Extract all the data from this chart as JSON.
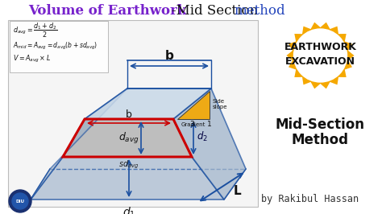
{
  "title_part1": "Volume of Earthwork",
  "title_part2": "-Mid Section ",
  "title_part3": "method",
  "title_color1": "#7722cc",
  "title_color2": "#111111",
  "title_color3": "#2244bb",
  "bg_color": "#ffffff",
  "badge_color": "#f5a800",
  "badge_text1": "EARTHWORK",
  "badge_text2": "EXCAVATION",
  "right_text1": "Mid-Section",
  "right_text2": "Method",
  "author_text": "by Rakibul Hassan",
  "trapezoid_fill": "#aabbd0",
  "top_face_fill": "#c8d8e8",
  "mid_section_fill": "#b8b8b8",
  "red_box_color": "#cc0000",
  "arrow_color": "#1a4fa0",
  "diagram_bg": "#f5f5f5",
  "gradient_tri_color": "#f5a800"
}
